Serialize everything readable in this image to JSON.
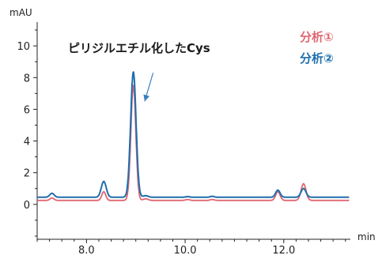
{
  "chart_data": {
    "type": "line",
    "y_unit_label": "mAU",
    "x_unit_label": "min",
    "xlim": [
      7.0,
      13.35
    ],
    "ylim": [
      -2.2,
      11.5
    ],
    "x_ticks": [
      {
        "value": 8.0,
        "label": "8.0"
      },
      {
        "value": 10.0,
        "label": "10.0"
      },
      {
        "value": 12.0,
        "label": "12.0"
      }
    ],
    "y_ticks": [
      {
        "value": 0,
        "label": "0"
      },
      {
        "value": 2,
        "label": "2"
      },
      {
        "value": 4,
        "label": "4"
      },
      {
        "value": 6,
        "label": "6"
      },
      {
        "value": 8,
        "label": "8"
      },
      {
        "value": 10,
        "label": "10"
      }
    ],
    "annotation": {
      "text": "ピリジルエチル化したCys",
      "arrow_from": [
        9.35,
        8.3
      ],
      "arrow_to": [
        9.18,
        6.5
      ]
    },
    "legend_position": "top-right",
    "series": [
      {
        "name": "分析①",
        "color": "#e06672",
        "baseline": 0.25,
        "peaks": [
          {
            "x": 7.3,
            "height": 0.15,
            "width": 0.04
          },
          {
            "x": 8.35,
            "height": 0.55,
            "width": 0.04
          },
          {
            "x": 8.95,
            "height": 7.25,
            "width": 0.05
          },
          {
            "x": 9.2,
            "height": 0.1,
            "width": 0.05
          },
          {
            "x": 10.05,
            "height": 0.06,
            "width": 0.04
          },
          {
            "x": 10.55,
            "height": 0.06,
            "width": 0.04
          },
          {
            "x": 11.88,
            "height": 0.55,
            "width": 0.045
          },
          {
            "x": 12.4,
            "height": 1.05,
            "width": 0.05
          }
        ]
      },
      {
        "name": "分析②",
        "color": "#1f6fad",
        "baseline": 0.45,
        "peaks": [
          {
            "x": 7.3,
            "height": 0.25,
            "width": 0.045
          },
          {
            "x": 8.35,
            "height": 1.0,
            "width": 0.05
          },
          {
            "x": 8.95,
            "height": 7.9,
            "width": 0.055
          },
          {
            "x": 9.2,
            "height": 0.1,
            "width": 0.05
          },
          {
            "x": 10.05,
            "height": 0.04,
            "width": 0.04
          },
          {
            "x": 10.55,
            "height": 0.06,
            "width": 0.04
          },
          {
            "x": 11.88,
            "height": 0.45,
            "width": 0.045
          },
          {
            "x": 12.4,
            "height": 0.55,
            "width": 0.05
          }
        ]
      }
    ]
  }
}
